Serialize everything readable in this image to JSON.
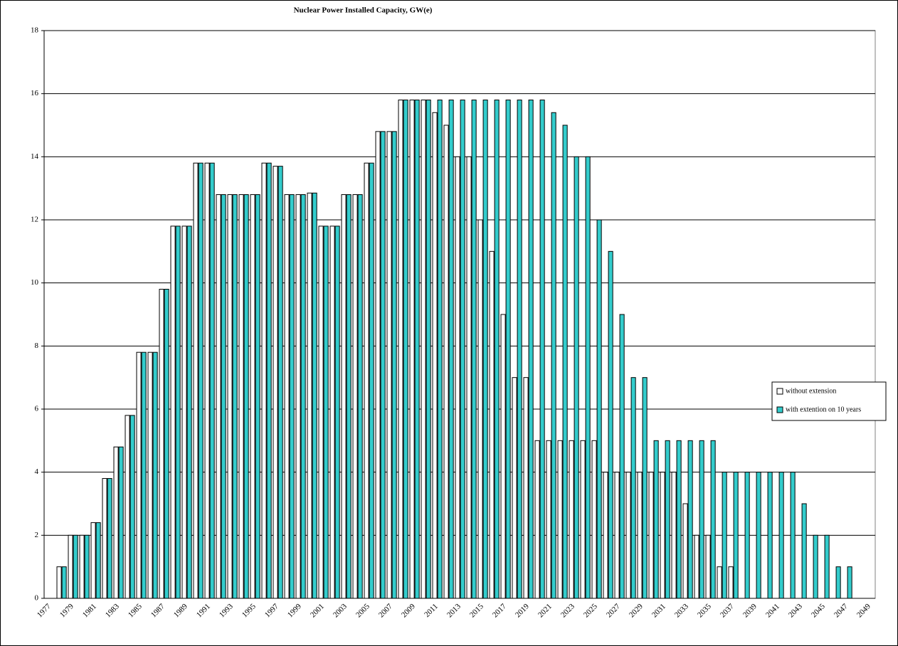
{
  "chart_data": {
    "type": "bar",
    "title": "Nuclear Power Installed Capacity,  GW(e)",
    "categories": [
      "1977",
      null,
      "1979",
      null,
      "1981",
      null,
      "1983",
      null,
      "1985",
      null,
      "1987",
      null,
      "1989",
      null,
      "1991",
      null,
      "1993",
      null,
      "1995",
      null,
      "1997",
      null,
      "1999",
      null,
      "2001",
      null,
      "2003",
      null,
      "2005",
      null,
      "2007",
      null,
      "2009",
      null,
      "2011",
      null,
      "2013",
      null,
      "2015",
      null,
      "2017",
      null,
      "2019",
      null,
      "2021",
      null,
      "2023",
      null,
      "2025",
      null,
      "2027",
      null,
      "2029",
      null,
      "2031",
      null,
      "2033",
      null,
      "2035",
      null,
      "2037",
      null,
      "2039",
      null,
      "2041",
      null,
      "2043",
      null,
      "2045",
      null,
      "2047",
      null,
      "2049"
    ],
    "series": [
      {
        "name": "without extension",
        "color": "#ffffff",
        "values": [
          0,
          1,
          2,
          2,
          2.4,
          3.8,
          4.8,
          5.8,
          7.8,
          7.8,
          9.8,
          11.8,
          11.8,
          13.8,
          13.8,
          12.8,
          12.8,
          12.8,
          12.8,
          13.8,
          13.7,
          12.8,
          12.8,
          12.85,
          11.8,
          11.8,
          12.8,
          12.8,
          13.8,
          14.8,
          14.8,
          15.8,
          15.8,
          15.8,
          15.4,
          15,
          14,
          14,
          12,
          11,
          9,
          7,
          7,
          5,
          5,
          5,
          5,
          5,
          5,
          4,
          4,
          4,
          4,
          4,
          4,
          4,
          3,
          2,
          2,
          1,
          1,
          0,
          0,
          0,
          0,
          0,
          0,
          0,
          0,
          0,
          0,
          0,
          0
        ]
      },
      {
        "name": "with extention on 10 years",
        "color": "#33cccc",
        "values": [
          0,
          1,
          2,
          2,
          2.4,
          3.8,
          4.8,
          5.8,
          7.8,
          7.8,
          9.8,
          11.8,
          11.8,
          13.8,
          13.8,
          12.8,
          12.8,
          12.8,
          12.8,
          13.8,
          13.7,
          12.8,
          12.8,
          12.85,
          11.8,
          11.8,
          12.8,
          12.8,
          13.8,
          14.8,
          14.8,
          15.8,
          15.8,
          15.8,
          15.8,
          15.8,
          15.8,
          15.8,
          15.8,
          15.8,
          15.8,
          15.8,
          15.8,
          15.8,
          15.4,
          15,
          14,
          14,
          12,
          11,
          9,
          7,
          7,
          5,
          5,
          5,
          5,
          5,
          5,
          4,
          4,
          4,
          4,
          4,
          4,
          4,
          3,
          2,
          2,
          1,
          1,
          0,
          0
        ]
      }
    ],
    "ylim": [
      0,
      18
    ],
    "yticks": [
      0,
      2,
      4,
      6,
      8,
      10,
      12,
      14,
      16,
      18
    ],
    "grid": true,
    "legend": "right"
  }
}
